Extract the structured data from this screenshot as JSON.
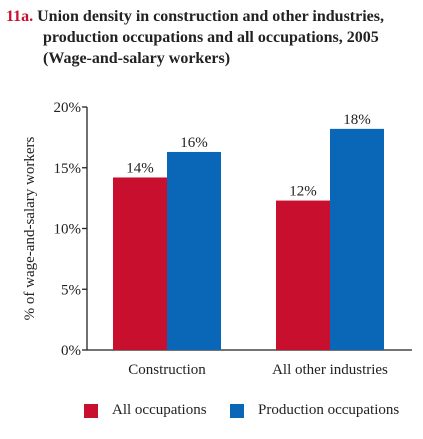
{
  "title": {
    "figure_number": "11a.",
    "line1": "Union density in construction and other industries,",
    "line2": "production occupations and all occupations, 2005",
    "line3": "(Wage-and-salary workers)"
  },
  "chart_data": {
    "type": "bar",
    "categories": [
      "Construction",
      "All other industries"
    ],
    "series": [
      {
        "name": "All occupations",
        "values": [
          14.2,
          12.3
        ],
        "labels": [
          "14%",
          "12%"
        ],
        "color": "#c8102e"
      },
      {
        "name": "Production occupations",
        "values": [
          16.3,
          18.2
        ],
        "labels": [
          "16%",
          "18%"
        ],
        "color": "#0a66b7"
      }
    ],
    "ylabel": "% of wage-and-salary workers",
    "ylim": [
      0,
      20
    ],
    "yticks": [
      0,
      5,
      10,
      15,
      20
    ],
    "ytick_labels": [
      "0%",
      "5%",
      "10%",
      "15%",
      "20%"
    ],
    "grid": false,
    "legend_position": "bottom"
  }
}
